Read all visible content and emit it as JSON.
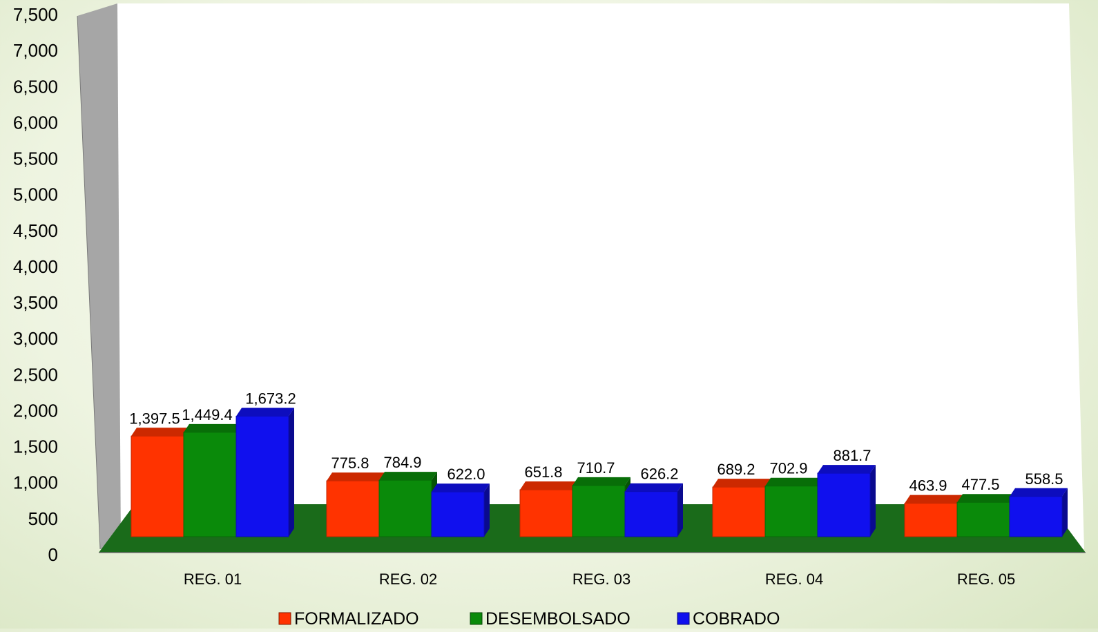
{
  "chart_data": {
    "type": "bar",
    "title": "",
    "xlabel": "",
    "ylabel": "",
    "ylim": [
      0,
      7500
    ],
    "yticks": [
      0,
      500,
      1000,
      1500,
      2000,
      2500,
      3000,
      3500,
      4000,
      4500,
      5000,
      5500,
      6000,
      6500,
      7000,
      7500
    ],
    "ytick_labels": [
      "0",
      "500",
      "1,000",
      "1,500",
      "2,000",
      "2,500",
      "3,000",
      "3,500",
      "4,000",
      "4,500",
      "5,000",
      "5,500",
      "6,000",
      "6,500",
      "7,000",
      "7,500"
    ],
    "categories": [
      "REG. 01",
      "REG. 02",
      "REG. 03",
      "REG. 04",
      "REG. 05"
    ],
    "series": [
      {
        "name": "FORMALIZADO",
        "color": "#ff3300",
        "values": [
          1397.5,
          775.8,
          651.8,
          689.2,
          463.9
        ],
        "labels": [
          "1,397.5",
          "775.8",
          "651.8",
          "689.2",
          "463.9"
        ]
      },
      {
        "name": "DESEMBOLSADO",
        "color": "#0a8a0a",
        "values": [
          1449.4,
          784.9,
          710.7,
          702.9,
          477.5
        ],
        "labels": [
          "1,449.4",
          "784.9",
          "710.7",
          "702.9",
          "477.5"
        ]
      },
      {
        "name": "COBRADO",
        "color": "#1010ee",
        "values": [
          1673.2,
          622.0,
          626.2,
          881.7,
          558.5
        ],
        "labels": [
          "1,673.2",
          "622.0",
          "626.2",
          "881.7",
          "558.5"
        ]
      }
    ],
    "grid": false,
    "legend_position": "bottom",
    "style": "3d",
    "colors": {
      "wall": "#ffffff",
      "side_wall": "#a6a6a6",
      "floor": "#1a6b1a"
    }
  }
}
